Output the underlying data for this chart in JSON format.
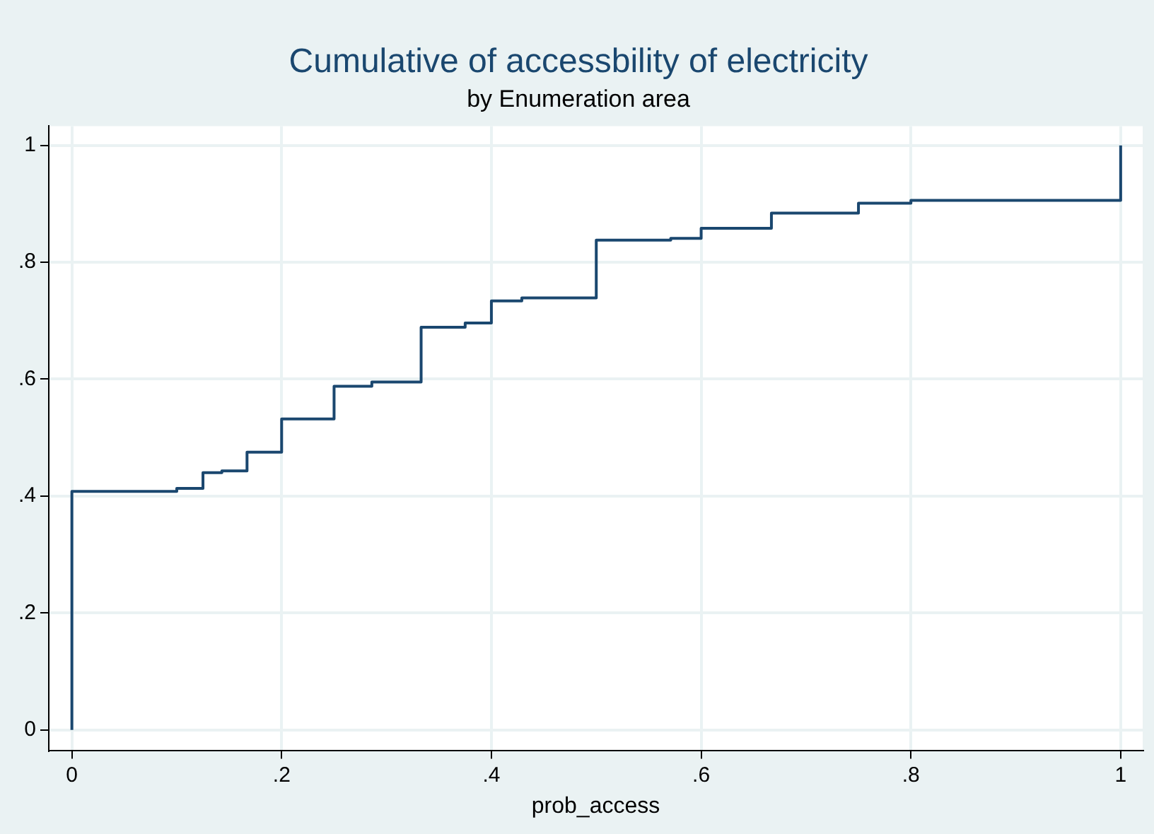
{
  "chart_data": {
    "type": "step",
    "title": "Cumulative of accessbility of electricity",
    "subtitle": "by Enumeration area",
    "xlabel": "prob_access",
    "x": [
      0,
      0,
      0.1,
      0.125,
      0.143,
      0.167,
      0.2,
      0.25,
      0.286,
      0.333,
      0.375,
      0.4,
      0.429,
      0.5,
      0.571,
      0.6,
      0.667,
      0.75,
      0.8,
      1
    ],
    "values": [
      0,
      0.408,
      0.413,
      0.44,
      0.443,
      0.475,
      0.532,
      0.588,
      0.595,
      0.689,
      0.696,
      0.734,
      0.739,
      0.838,
      0.841,
      0.858,
      0.884,
      0.901,
      0.906,
      1
    ],
    "color": "#1a476f",
    "xlim": [
      -0.022,
      1.021
    ],
    "ylim": [
      -0.035,
      1.033
    ],
    "xticks": [
      0,
      {
        "value": 0.2,
        "label": ".2"
      },
      {
        "value": 0.4,
        "label": ".4"
      },
      {
        "value": 0.6,
        "label": ".6"
      },
      {
        "value": 0.8,
        "label": ".8"
      },
      1
    ],
    "yticks": [
      0,
      {
        "value": 0.2,
        "label": ".2"
      },
      {
        "value": 0.4,
        "label": ".4"
      },
      {
        "value": 0.6,
        "label": ".6"
      },
      {
        "value": 0.8,
        "label": ".8"
      },
      1
    ],
    "grid": true,
    "legend": false
  }
}
